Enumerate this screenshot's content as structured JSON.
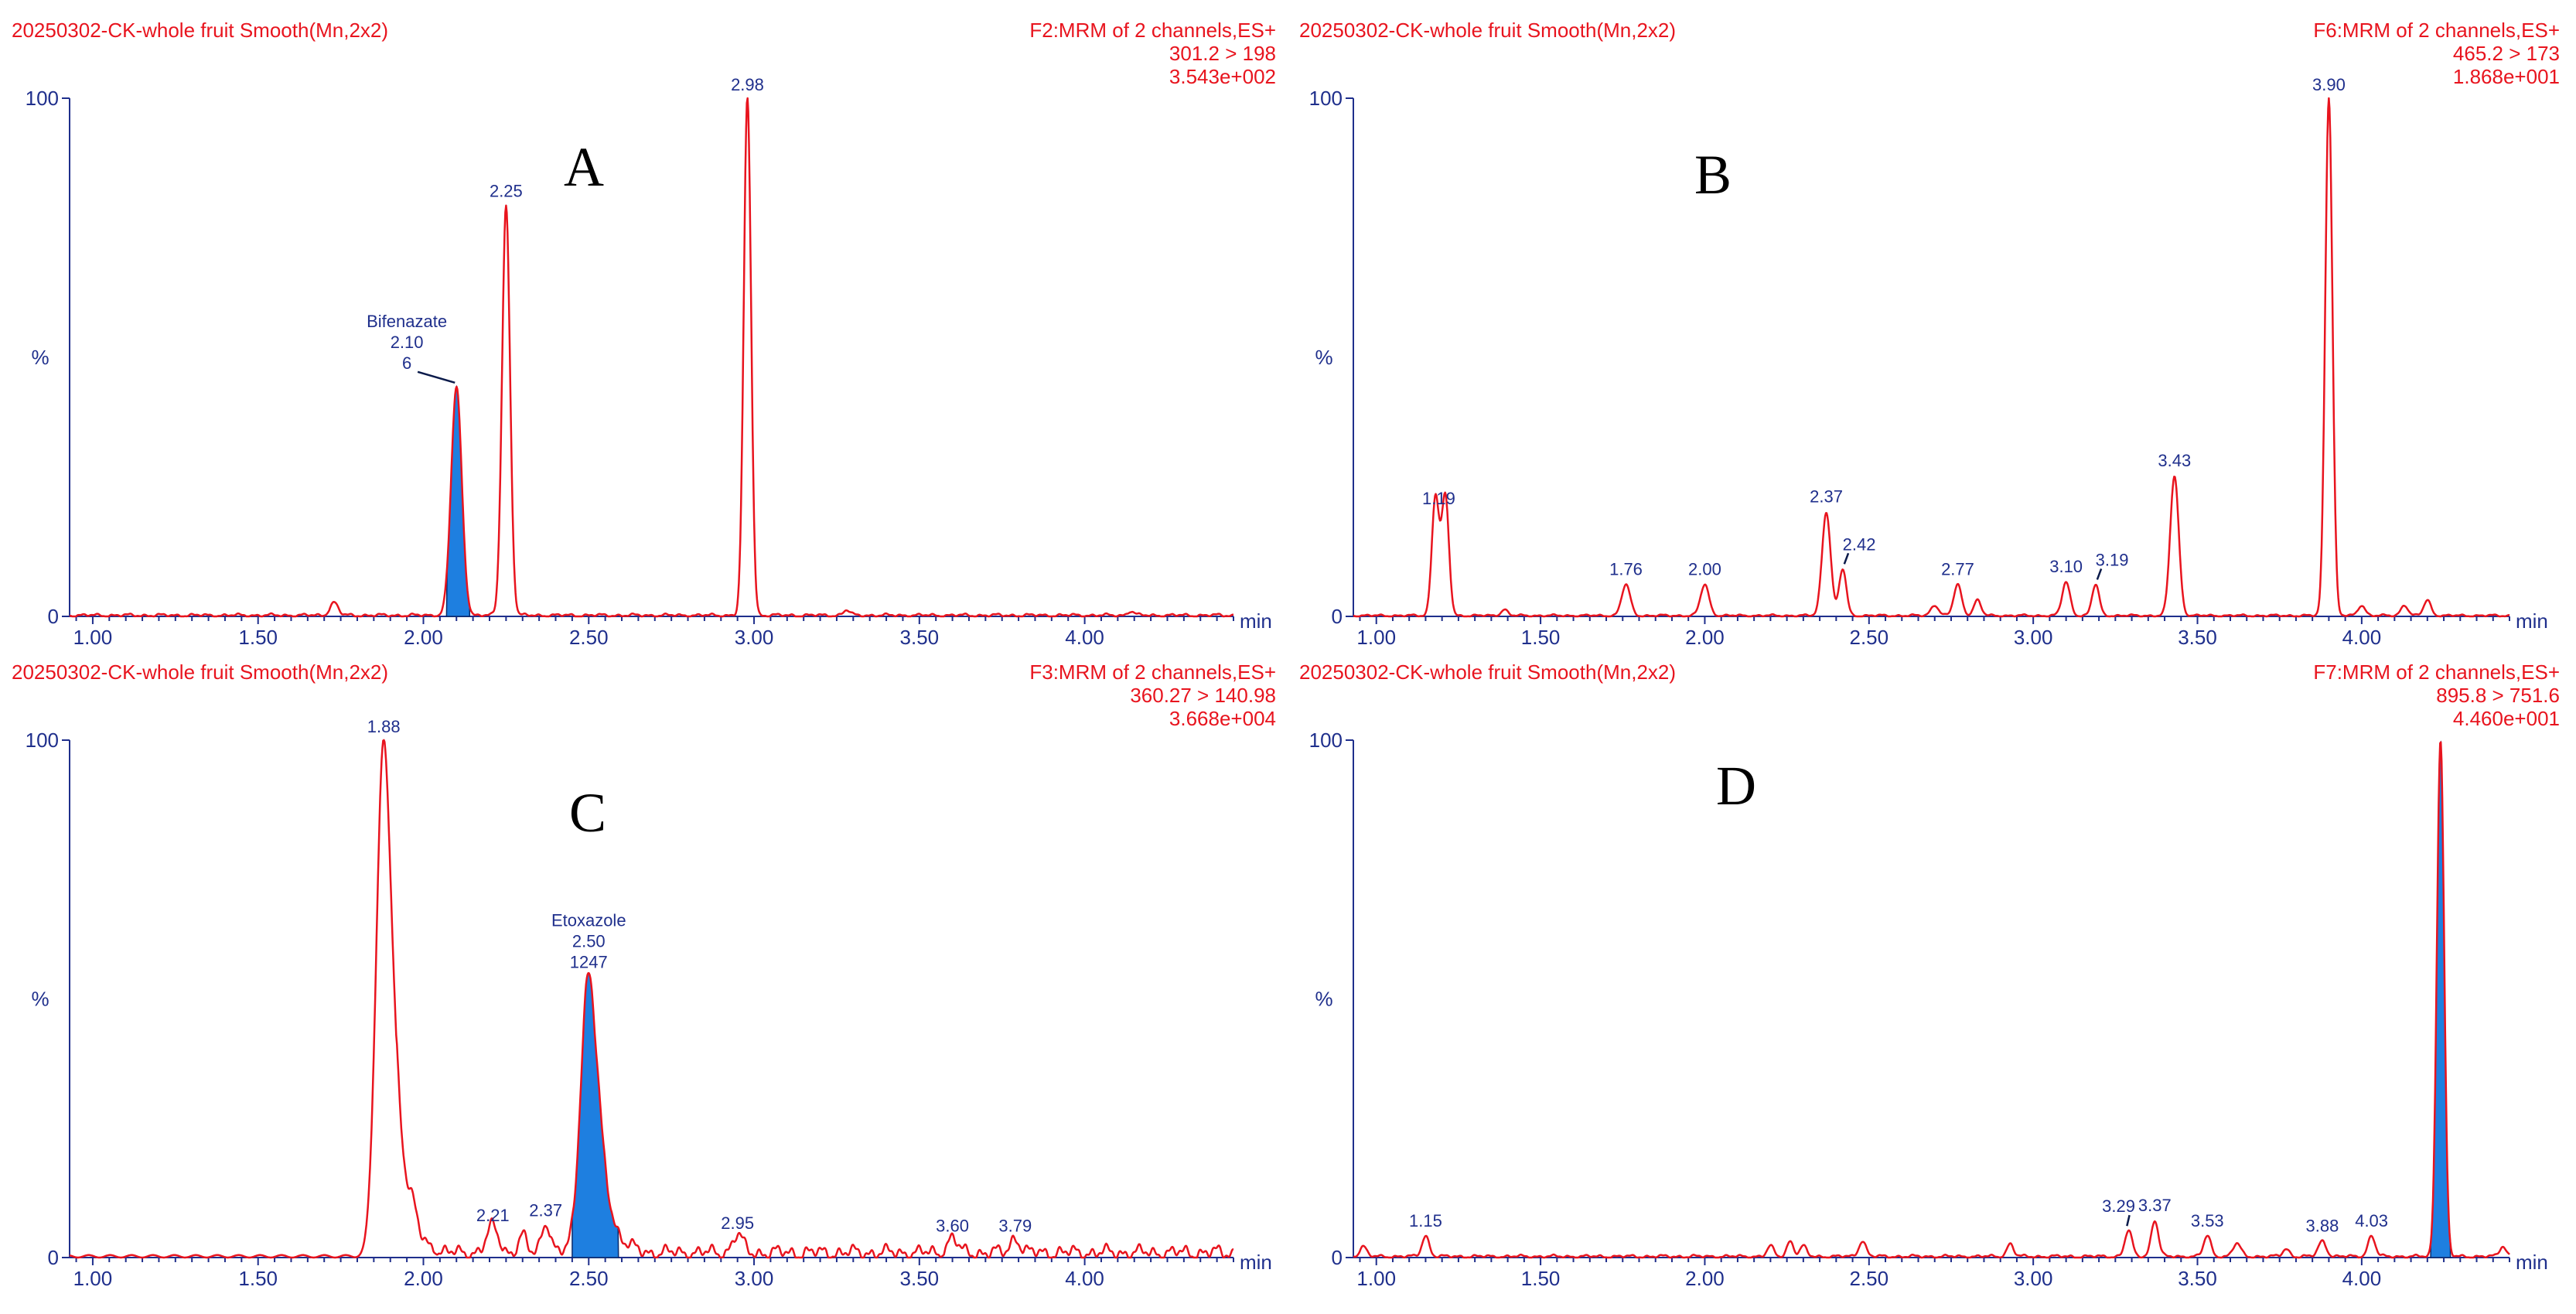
{
  "colors": {
    "trace": "#e8141e",
    "axis": "#1f2f8c",
    "fill": "#1e7fe0",
    "header": "#e8141e"
  },
  "chart_data": [
    {
      "type": "line",
      "panel_letter": "A",
      "header_left": "20250302-CK-whole fruit Smooth(Mn,2x2)",
      "header_right": [
        "F2:MRM of 2 channels,ES+",
        "301.2 > 198",
        "3.543e+002"
      ],
      "xlabel": "min",
      "ylabel": "%",
      "xlim": [
        0.93,
        4.45
      ],
      "ylim": [
        0,
        100
      ],
      "x_ticks": [
        "1.00",
        "1.50",
        "2.00",
        "2.50",
        "3.00",
        "3.50",
        "4.00"
      ],
      "y_ticks": [
        "0",
        "100"
      ],
      "peaks": [
        {
          "rt": 1.73,
          "height": 2.5,
          "width": 0.012
        },
        {
          "rt": 2.1,
          "height": 44,
          "width": 0.016,
          "filled": true,
          "fill_range": [
            2.07,
            2.14
          ]
        },
        {
          "rt": 2.25,
          "height": 79,
          "width": 0.012
        },
        {
          "rt": 2.98,
          "height": 100,
          "width": 0.011
        },
        {
          "rt": 3.28,
          "height": 1.0,
          "width": 0.01
        },
        {
          "rt": 4.14,
          "height": 0.8,
          "width": 0.01
        }
      ],
      "noise": 0.35,
      "labels": [
        {
          "rt": 2.25,
          "lines": [
            "2.25"
          ]
        },
        {
          "rt": 2.98,
          "lines": [
            "2.98"
          ]
        },
        {
          "rt": 2.1,
          "lines": [
            "Bifenazate",
            "2.10",
            "6"
          ],
          "offset": -0.15,
          "leader": true
        }
      ]
    },
    {
      "type": "line",
      "panel_letter": "B",
      "header_left": "20250302-CK-whole fruit Smooth(Mn,2x2)",
      "header_right": [
        "F6:MRM of 2 channels,ES+",
        "465.2 > 173",
        "1.868e+001"
      ],
      "xlabel": "min",
      "ylabel": "%",
      "xlim": [
        0.93,
        4.45
      ],
      "ylim": [
        0,
        100
      ],
      "x_ticks": [
        "1.00",
        "1.50",
        "2.00",
        "2.50",
        "3.00",
        "3.50",
        "4.00"
      ],
      "y_ticks": [
        "0",
        "100"
      ],
      "peaks": [
        {
          "rt": 1.18,
          "height": 23,
          "width": 0.011
        },
        {
          "rt": 1.21,
          "height": 23,
          "width": 0.011
        },
        {
          "rt": 1.39,
          "height": 1.2,
          "width": 0.01
        },
        {
          "rt": 1.76,
          "height": 6,
          "width": 0.013
        },
        {
          "rt": 2.0,
          "height": 6,
          "width": 0.013
        },
        {
          "rt": 2.37,
          "height": 20,
          "width": 0.013
        },
        {
          "rt": 2.42,
          "height": 9,
          "width": 0.011
        },
        {
          "rt": 2.7,
          "height": 2,
          "width": 0.012
        },
        {
          "rt": 2.77,
          "height": 6,
          "width": 0.012
        },
        {
          "rt": 2.83,
          "height": 3,
          "width": 0.011
        },
        {
          "rt": 3.1,
          "height": 6.5,
          "width": 0.012
        },
        {
          "rt": 3.19,
          "height": 6,
          "width": 0.011
        },
        {
          "rt": 3.43,
          "height": 27,
          "width": 0.013
        },
        {
          "rt": 3.9,
          "height": 100,
          "width": 0.011
        },
        {
          "rt": 4.0,
          "height": 2,
          "width": 0.011
        },
        {
          "rt": 4.13,
          "height": 2,
          "width": 0.011
        },
        {
          "rt": 4.2,
          "height": 3,
          "width": 0.011
        }
      ],
      "noise": 0.25,
      "labels": [
        {
          "rt": 1.19,
          "lines": [
            "1.19"
          ]
        },
        {
          "rt": 1.76,
          "lines": [
            "1.76"
          ]
        },
        {
          "rt": 2.0,
          "lines": [
            "2.00"
          ]
        },
        {
          "rt": 2.37,
          "lines": [
            "2.37"
          ]
        },
        {
          "rt": 2.42,
          "lines": [
            "2.42"
          ],
          "offset": 0.05,
          "leader": true
        },
        {
          "rt": 2.77,
          "lines": [
            "2.77"
          ]
        },
        {
          "rt": 3.1,
          "lines": [
            "3.10"
          ]
        },
        {
          "rt": 3.19,
          "lines": [
            "3.19"
          ],
          "offset": 0.05,
          "leader": true
        },
        {
          "rt": 3.43,
          "lines": [
            "3.43"
          ]
        },
        {
          "rt": 3.9,
          "lines": [
            "3.90"
          ]
        }
      ]
    },
    {
      "type": "line",
      "panel_letter": "C",
      "header_left": "20250302-CK-whole fruit Smooth(Mn,2x2)",
      "header_right": [
        "F3:MRM of 2 channels,ES+",
        "360.27 > 140.98",
        "3.668e+004"
      ],
      "xlabel": "min",
      "ylabel": "%",
      "xlim": [
        0.93,
        4.45
      ],
      "ylim": [
        0,
        100
      ],
      "x_ticks": [
        "1.00",
        "1.50",
        "2.00",
        "2.50",
        "3.00",
        "3.50",
        "4.00"
      ],
      "y_ticks": [
        "0",
        "100"
      ],
      "peaks": [
        {
          "rt": 1.88,
          "height": 100,
          "width": 0.022,
          "tail": 0.05
        },
        {
          "rt": 1.97,
          "height": 3,
          "width": 0.012
        },
        {
          "rt": 2.21,
          "height": 5,
          "width": 0.018
        },
        {
          "rt": 2.3,
          "height": 3,
          "width": 0.012
        },
        {
          "rt": 2.37,
          "height": 6,
          "width": 0.013
        },
        {
          "rt": 2.5,
          "height": 54,
          "width": 0.024,
          "tail": 0.05,
          "filled": true,
          "fill_range": [
            2.45,
            2.59
          ]
        },
        {
          "rt": 2.95,
          "height": 3.5,
          "width": 0.015
        },
        {
          "rt": 3.6,
          "height": 3,
          "width": 0.014
        },
        {
          "rt": 3.79,
          "height": 3,
          "width": 0.014
        }
      ],
      "noise": 1.6,
      "noise_from": 1.92,
      "labels": [
        {
          "rt": 1.88,
          "lines": [
            "1.88"
          ]
        },
        {
          "rt": 2.21,
          "lines": [
            "2.21"
          ]
        },
        {
          "rt": 2.37,
          "lines": [
            "2.37"
          ]
        },
        {
          "rt": 2.5,
          "lines": [
            "Etoxazole",
            "2.50",
            "1247"
          ]
        },
        {
          "rt": 2.95,
          "lines": [
            "2.95"
          ]
        },
        {
          "rt": 3.6,
          "lines": [
            "3.60"
          ]
        },
        {
          "rt": 3.79,
          "lines": [
            "3.79"
          ]
        }
      ]
    },
    {
      "type": "line",
      "panel_letter": "D",
      "header_left": "20250302-CK-whole fruit Smooth(Mn,2x2)",
      "header_right": [
        "F7:MRM of 2 channels,ES+",
        "895.8 > 751.6",
        "4.460e+001"
      ],
      "xlabel": "min",
      "ylabel": "%",
      "xlim": [
        0.93,
        4.45
      ],
      "ylim": [
        0,
        100
      ],
      "x_ticks": [
        "1.00",
        "1.50",
        "2.00",
        "2.50",
        "3.00",
        "3.50",
        "4.00"
      ],
      "y_ticks": [
        "0",
        "100"
      ],
      "peaks": [
        {
          "rt": 0.96,
          "height": 2,
          "width": 0.01
        },
        {
          "rt": 1.15,
          "height": 4,
          "width": 0.011
        },
        {
          "rt": 2.2,
          "height": 2,
          "width": 0.01
        },
        {
          "rt": 2.26,
          "height": 3,
          "width": 0.01
        },
        {
          "rt": 2.3,
          "height": 2,
          "width": 0.01
        },
        {
          "rt": 2.48,
          "height": 3,
          "width": 0.011
        },
        {
          "rt": 2.93,
          "height": 2.5,
          "width": 0.01
        },
        {
          "rt": 3.29,
          "height": 5,
          "width": 0.011
        },
        {
          "rt": 3.37,
          "height": 7,
          "width": 0.011
        },
        {
          "rt": 3.53,
          "height": 4,
          "width": 0.011
        },
        {
          "rt": 3.62,
          "height": 2.5,
          "width": 0.012
        },
        {
          "rt": 3.77,
          "height": 1.5,
          "width": 0.01
        },
        {
          "rt": 3.88,
          "height": 3,
          "width": 0.012
        },
        {
          "rt": 4.03,
          "height": 4,
          "width": 0.011
        },
        {
          "rt": 4.24,
          "height": 100,
          "width": 0.011,
          "filled": true,
          "fill_range": [
            4.21,
            4.27
          ]
        },
        {
          "rt": 4.43,
          "height": 2,
          "width": 0.01
        }
      ],
      "noise": 0.35,
      "labels": [
        {
          "rt": 1.15,
          "lines": [
            "1.15"
          ]
        },
        {
          "rt": 3.29,
          "lines": [
            "3.29"
          ],
          "offset": -0.03,
          "leader": true
        },
        {
          "rt": 3.37,
          "lines": [
            "3.37"
          ]
        },
        {
          "rt": 3.53,
          "lines": [
            "3.53"
          ]
        },
        {
          "rt": 3.88,
          "lines": [
            "3.88"
          ]
        },
        {
          "rt": 4.03,
          "lines": [
            "4.03"
          ]
        }
      ]
    }
  ]
}
